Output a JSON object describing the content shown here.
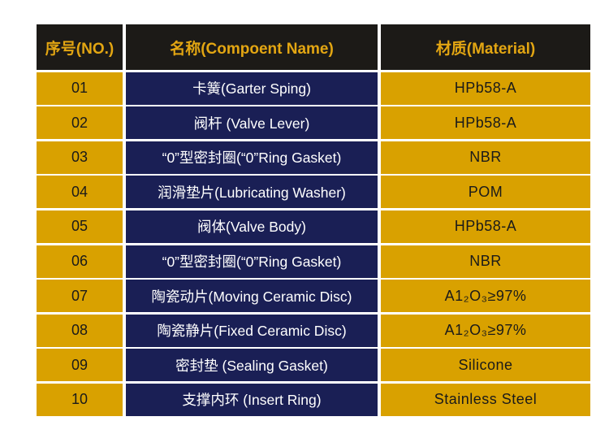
{
  "header": {
    "no": "序号(NO.)",
    "name": "名称(Compoent Name)",
    "material": "材质(Material)"
  },
  "rows": [
    {
      "no": "01",
      "name": "卡簧(Garter Sping)",
      "material": "HPb58-A"
    },
    {
      "no": "02",
      "name": "阀杆 (Valve Lever)",
      "material": "HPb58-A"
    },
    {
      "no": "03",
      "name": "“0”型密封圈(“0”Ring Gasket)",
      "material": "NBR"
    },
    {
      "no": "04",
      "name": "润滑垫片(Lubricating Washer)",
      "material": "POM"
    },
    {
      "no": "05",
      "name": "阀体(Valve Body)",
      "material": "HPb58-A"
    },
    {
      "no": "06",
      "name": "“0”型密封圈(“0”Ring Gasket)",
      "material": "NBR"
    },
    {
      "no": "07",
      "name": "陶瓷动片(Moving Ceramic Disc)",
      "material": "A1₂O₃≥97%"
    },
    {
      "no": "08",
      "name": "陶瓷静片(Fixed Ceramic Disc)",
      "material": "A1₂O₃≥97%"
    },
    {
      "no": "09",
      "name": "密封垫 (Sealing Gasket)",
      "material": "Silicone"
    },
    {
      "no": "10",
      "name": "支撑内环 (Insert Ring)",
      "material": "Stainless Steel"
    }
  ],
  "colors": {
    "header_bg": "#1c1a17",
    "header_text": "#e3a612",
    "gold": "#d9a100",
    "navy": "#1a1f55"
  }
}
